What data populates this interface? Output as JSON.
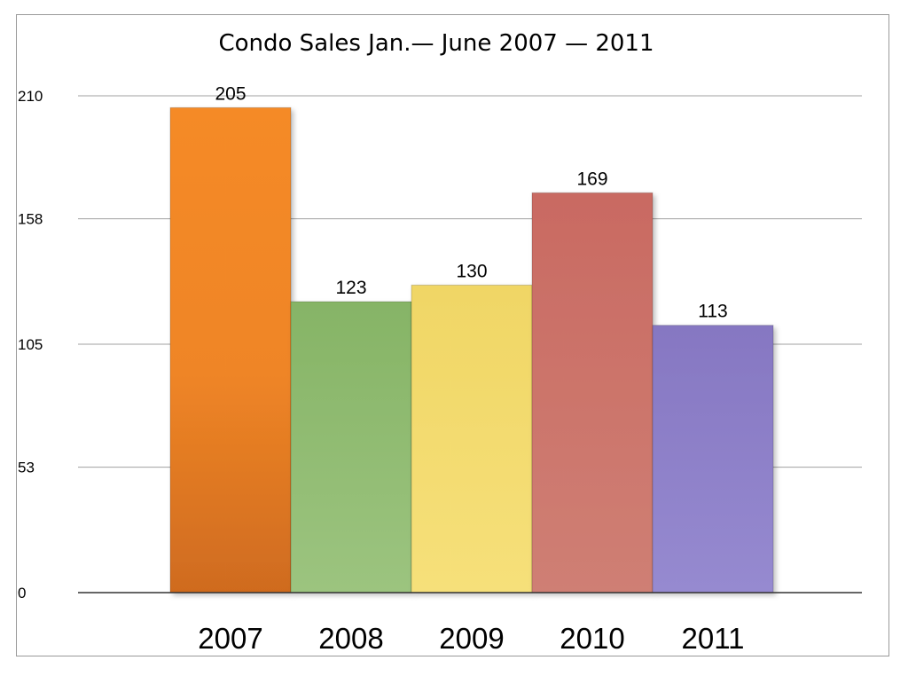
{
  "chart_data": {
    "type": "bar",
    "title": "Condo Sales Jan.— June 2007 — 2011",
    "xlabel": "",
    "ylabel": "",
    "categories": [
      "2007",
      "2008",
      "2009",
      "2010",
      "2011"
    ],
    "values": [
      205,
      123,
      130,
      169,
      113
    ],
    "data_labels": [
      "205",
      "123",
      "130",
      "169",
      "113"
    ],
    "y_ticks": [
      0,
      53,
      105,
      158,
      210
    ],
    "y_tick_labels": [
      "0",
      "53",
      "105",
      "158",
      "210"
    ],
    "ylim": [
      0,
      210
    ],
    "grid": true,
    "legend": "none",
    "colors": [
      "#f08a2a",
      "#8fb86f",
      "#f1d86a",
      "#c9726a",
      "#8d7fc4"
    ]
  }
}
